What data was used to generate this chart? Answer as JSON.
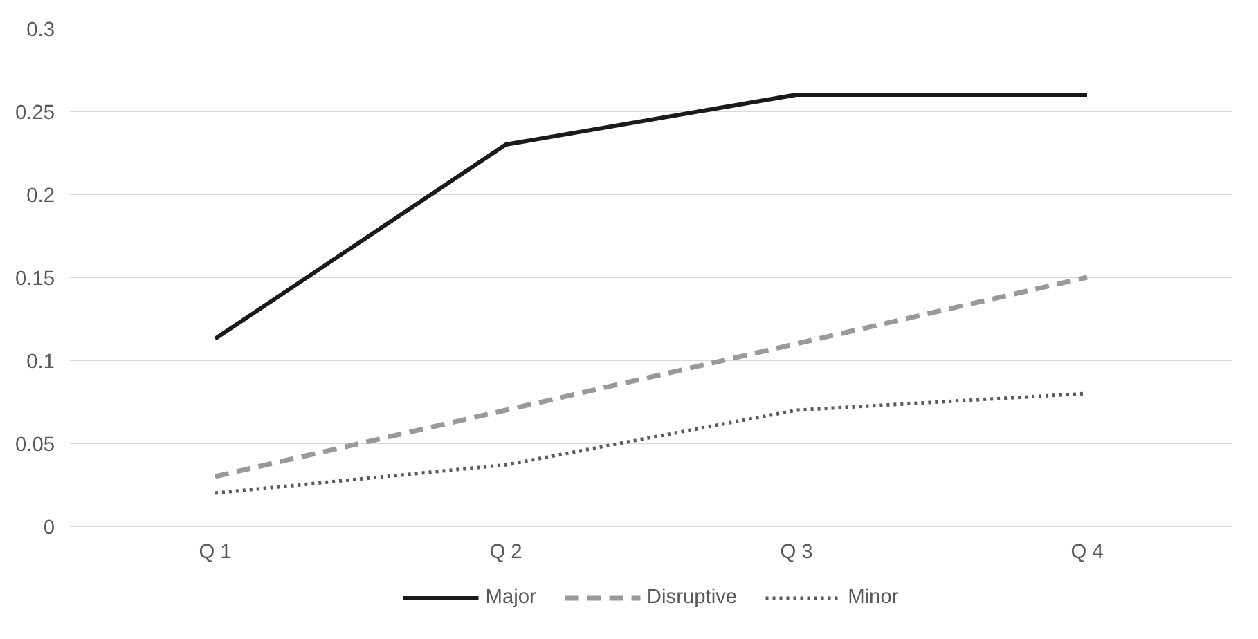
{
  "chart_data": {
    "type": "line",
    "categories": [
      "Q 1",
      "Q 2",
      "Q 3",
      "Q 4"
    ],
    "series": [
      {
        "name": "Major",
        "color": "#1a1a1a",
        "line_style": "solid",
        "values": [
          0.113,
          0.23,
          0.26,
          0.26
        ]
      },
      {
        "name": "Disruptive",
        "color": "#999999",
        "line_style": "dashed",
        "values": [
          0.03,
          0.07,
          0.11,
          0.15
        ]
      },
      {
        "name": "Minor",
        "color": "#595959",
        "line_style": "dotted",
        "values": [
          0.02,
          0.037,
          0.07,
          0.08
        ]
      }
    ],
    "ylim": [
      0,
      0.3
    ],
    "yticks": [
      0,
      0.05,
      0.1,
      0.15,
      0.2,
      0.25,
      0.3
    ],
    "grid": "y",
    "legend": "bottom"
  }
}
